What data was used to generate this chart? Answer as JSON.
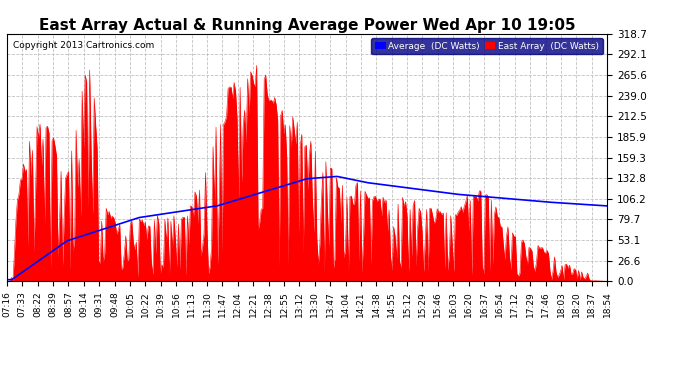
{
  "title": "East Array Actual & Running Average Power Wed Apr 10 19:05",
  "copyright": "Copyright 2013 Cartronics.com",
  "legend_labels": [
    "Average  (DC Watts)",
    "East Array  (DC Watts)"
  ],
  "legend_colors": [
    "#0000ff",
    "#ff0000"
  ],
  "yticks": [
    0.0,
    26.6,
    53.1,
    79.7,
    106.2,
    132.8,
    159.3,
    185.9,
    212.5,
    239.0,
    265.6,
    292.1,
    318.7
  ],
  "ylim": [
    0.0,
    318.7
  ],
  "bg_color": "#ffffff",
  "grid_color": "#bbbbbb",
  "fill_color": "#ff0000",
  "line_color": "#0000ff",
  "title_fontsize": 11,
  "xtick_fontsize": 6.5,
  "ytick_fontsize": 7.5,
  "time_labels": [
    "07:16",
    "07:33",
    "08:22",
    "08:39",
    "08:57",
    "09:14",
    "09:31",
    "09:48",
    "10:05",
    "10:22",
    "10:39",
    "10:56",
    "11:13",
    "11:30",
    "11:47",
    "12:04",
    "12:21",
    "12:38",
    "12:55",
    "13:12",
    "13:30",
    "13:47",
    "14:04",
    "14:21",
    "14:38",
    "14:55",
    "15:12",
    "15:29",
    "15:46",
    "16:03",
    "16:20",
    "16:37",
    "16:54",
    "17:12",
    "17:29",
    "17:46",
    "18:03",
    "18:20",
    "18:37",
    "18:54"
  ]
}
